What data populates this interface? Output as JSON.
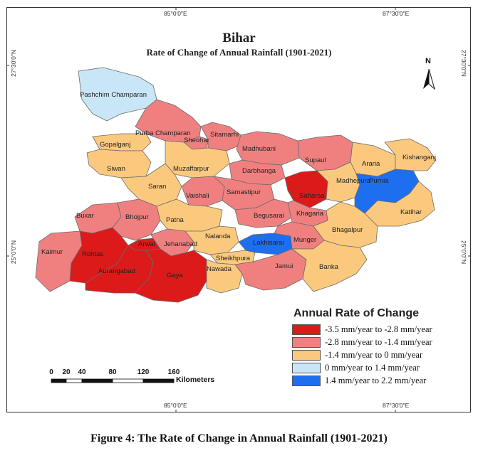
{
  "map": {
    "title": "Bihar",
    "subtitle": "Rate of Change of Annual Rainfall (1901-2021)",
    "coords": {
      "top_left": "85°0'0\"E",
      "top_right": "87°30'0\"E",
      "bottom_left": "85°0'0\"E",
      "bottom_right": "87°30'0\"E",
      "left_top": "27°30'0\"N",
      "left_bottom": "25°0'0\"N",
      "right_top": "27°30'0\"N",
      "right_bottom": "25°0'0\"N"
    },
    "north": "N",
    "colors": {
      "dark_red": "#dc1a1a",
      "salmon": "#f08080",
      "tan": "#fbc97e",
      "light_blue": "#c9e6f7",
      "blue": "#1e6ef0"
    },
    "districts": [
      {
        "name": "Pashchim Champaran",
        "class": "light_blue"
      },
      {
        "name": "Purba Champaran",
        "class": "salmon"
      },
      {
        "name": "Sheohar",
        "class": "salmon"
      },
      {
        "name": "Sitamarhi",
        "class": "salmon"
      },
      {
        "name": "Madhubani",
        "class": "salmon"
      },
      {
        "name": "Supaul",
        "class": "salmon"
      },
      {
        "name": "Araria",
        "class": "tan"
      },
      {
        "name": "Kishanganj",
        "class": "tan"
      },
      {
        "name": "Gopalganj",
        "class": "tan"
      },
      {
        "name": "Siwan",
        "class": "tan"
      },
      {
        "name": "Muzaffarpur",
        "class": "tan"
      },
      {
        "name": "Darbhanga",
        "class": "salmon"
      },
      {
        "name": "Saran",
        "class": "tan"
      },
      {
        "name": "Vaishali",
        "class": "salmon"
      },
      {
        "name": "Samastipur",
        "class": "salmon"
      },
      {
        "name": "Saharsa",
        "class": "dark_red"
      },
      {
        "name": "Madhepura",
        "class": "tan"
      },
      {
        "name": "Purnia",
        "class": "blue"
      },
      {
        "name": "Katihar",
        "class": "tan"
      },
      {
        "name": "Buxar",
        "class": "salmon"
      },
      {
        "name": "Bhojpur",
        "class": "salmon"
      },
      {
        "name": "Patna",
        "class": "tan"
      },
      {
        "name": "Begusarai",
        "class": "salmon"
      },
      {
        "name": "Khagaria",
        "class": "salmon"
      },
      {
        "name": "Bhagalpur",
        "class": "tan"
      },
      {
        "name": "Kaimur",
        "class": "salmon"
      },
      {
        "name": "Rohtas",
        "class": "dark_red"
      },
      {
        "name": "Arwal",
        "class": "dark_red"
      },
      {
        "name": "Jehanabad",
        "class": "salmon"
      },
      {
        "name": "Nalanda",
        "class": "tan"
      },
      {
        "name": "Sheikhpura",
        "class": "tan"
      },
      {
        "name": "Lakhisarai",
        "class": "blue"
      },
      {
        "name": "Munger",
        "class": "salmon"
      },
      {
        "name": "Aurangabad",
        "class": "dark_red"
      },
      {
        "name": "Gaya",
        "class": "dark_red"
      },
      {
        "name": "Nawada",
        "class": "tan"
      },
      {
        "name": "Jamui",
        "class": "salmon"
      },
      {
        "name": "Banka",
        "class": "tan"
      }
    ]
  },
  "legend": {
    "title": "Annual Rate of Change",
    "items": [
      {
        "label": "-3.5 mm/year to -2.8 mm/year",
        "color": "#dc1a1a"
      },
      {
        "label": "-2.8 mm/year to -1.4 mm/year",
        "color": "#f08080"
      },
      {
        "label": "-1.4 mm/year to 0 mm/year",
        "color": "#fbc97e"
      },
      {
        "label": "0 mm/year to 1.4 mm/year",
        "color": "#c9e6f7"
      },
      {
        "label": "1.4 mm/year to 2.2 mm/year",
        "color": "#1e6ef0"
      }
    ]
  },
  "scalebar": {
    "ticks": [
      "0",
      "20",
      "40",
      "80",
      "120",
      "160"
    ],
    "unit": "Kilometers"
  },
  "caption": "Figure 4: The Rate of Change in Annual Rainfall (1901-2021)"
}
